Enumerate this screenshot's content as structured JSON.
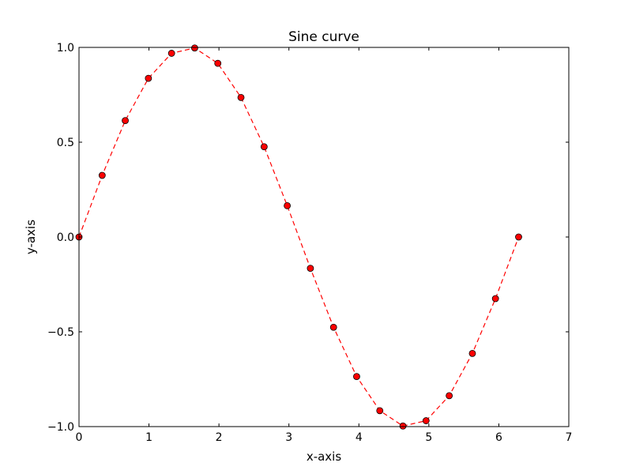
{
  "chart_data": {
    "type": "line",
    "title": "Sine curve",
    "xlabel": "x-axis",
    "ylabel": "y-axis",
    "xlim": [
      0,
      7
    ],
    "ylim": [
      -1.0,
      1.0
    ],
    "x_ticks": [
      0,
      1,
      2,
      3,
      4,
      5,
      6,
      7
    ],
    "x_tick_labels": [
      "0",
      "1",
      "2",
      "3",
      "4",
      "5",
      "6",
      "7"
    ],
    "y_ticks": [
      -1.0,
      -0.5,
      0.0,
      0.5,
      1.0
    ],
    "y_tick_labels": [
      "−1.0",
      "−0.5",
      "0.0",
      "0.5",
      "1.0"
    ],
    "grid": false,
    "series": [
      {
        "line_style": "dashed",
        "marker": "circle",
        "color": "#ff0000",
        "x": [
          0.0,
          0.331,
          0.661,
          0.992,
          1.323,
          1.653,
          1.984,
          2.315,
          2.646,
          2.976,
          3.307,
          3.638,
          3.968,
          4.299,
          4.63,
          4.96,
          5.291,
          5.622,
          5.952,
          6.283
        ],
        "y": [
          0.0,
          0.325,
          0.614,
          0.837,
          0.969,
          0.997,
          0.916,
          0.736,
          0.476,
          0.165,
          -0.165,
          -0.476,
          -0.736,
          -0.916,
          -0.997,
          -0.969,
          -0.837,
          -0.614,
          -0.325,
          0.0
        ]
      }
    ]
  }
}
